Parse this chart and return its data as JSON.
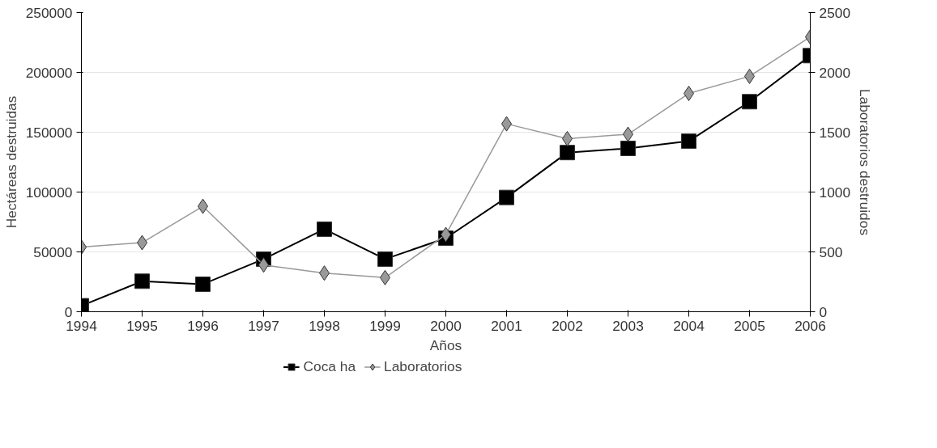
{
  "chart_data": {
    "type": "line",
    "xlabel": "Años",
    "ylabel": "Hectáreas destruidas",
    "y2label": "Laboratorios destruidos",
    "x": [
      1994,
      1995,
      1996,
      1997,
      1998,
      1999,
      2000,
      2001,
      2002,
      2003,
      2004,
      2005,
      2006
    ],
    "xlim": [
      1994,
      2006
    ],
    "xticks": [
      1994,
      1995,
      1996,
      1997,
      1998,
      1999,
      2000,
      2001,
      2002,
      2003,
      2004,
      2005,
      2006
    ],
    "ylim": [
      0,
      250000
    ],
    "yticks": [
      0,
      50000,
      100000,
      150000,
      200000,
      250000
    ],
    "y2lim": [
      0,
      2500
    ],
    "y2ticks": [
      0,
      500,
      1000,
      1500,
      2000,
      2500
    ],
    "grid": "y",
    "legend": "bottom",
    "series": [
      {
        "name": "Coca ha",
        "color": "#000000",
        "marker": "square",
        "values": [
          5000,
          25500,
          23000,
          44000,
          69000,
          44000,
          61500,
          95500,
          133000,
          136500,
          142500,
          175500,
          214000
        ]
      },
      {
        "name": "Laboratorios",
        "color": "#999999",
        "marker": "diamond",
        "axis": "y2",
        "values": [
          540,
          577,
          881,
          391,
          323,
          285,
          645,
          1570,
          1446,
          1483,
          1824,
          1967,
          2296
        ]
      }
    ]
  }
}
